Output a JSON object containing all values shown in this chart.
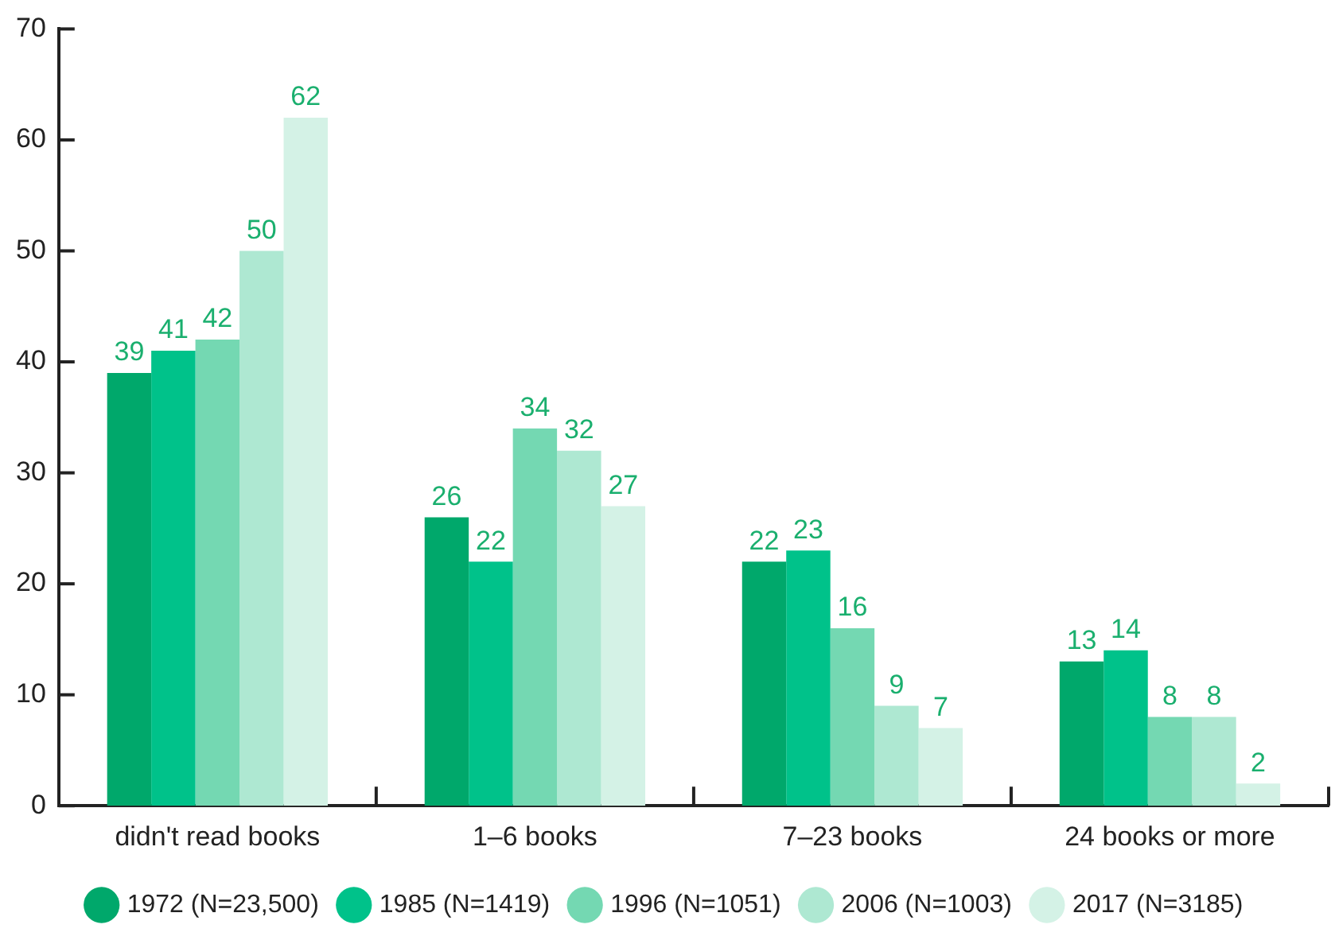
{
  "chart_data": {
    "type": "bar",
    "categories": [
      "didn't read books",
      "1–6 books",
      "7–23 books",
      "24 books or more"
    ],
    "series": [
      {
        "name": "1972 (N=23,500)",
        "color": "#00a86b",
        "values": [
          39,
          26,
          22,
          13
        ]
      },
      {
        "name": "1985 (N=1419)",
        "color": "#00c28a",
        "values": [
          41,
          22,
          23,
          14
        ]
      },
      {
        "name": "1996 (N=1051)",
        "color": "#74d8b2",
        "values": [
          42,
          34,
          16,
          8
        ]
      },
      {
        "name": "2006 (N=1003)",
        "color": "#aee8d2",
        "values": [
          50,
          32,
          9,
          8
        ]
      },
      {
        "name": "2017 (N=3185)",
        "color": "#d4f2e6",
        "values": [
          62,
          27,
          7,
          2
        ]
      }
    ],
    "ylim": [
      0,
      70
    ],
    "yticks": [
      0,
      10,
      20,
      30,
      40,
      50,
      60,
      70
    ],
    "grid": false,
    "legend": "bottom",
    "data_labels": true
  }
}
